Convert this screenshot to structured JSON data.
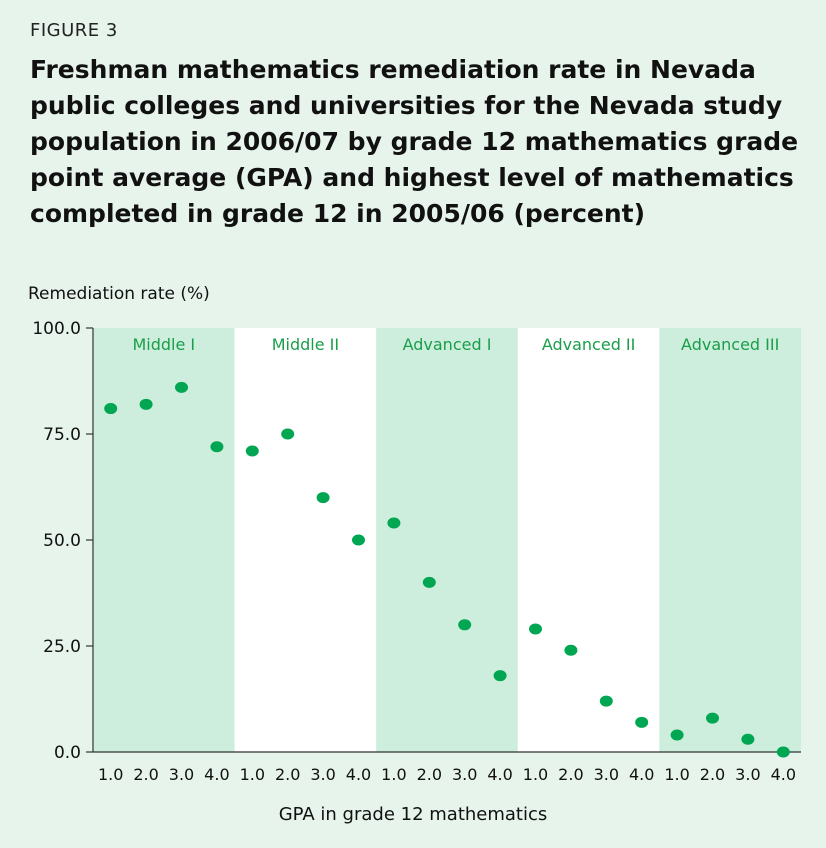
{
  "figure_label": "FIGURE 3",
  "chart_data": {
    "type": "scatter",
    "title": "Freshman mathematics remediation rate in Nevada public colleges and universities for the Nevada study population in 2006/07 by grade 12 mathematics grade point average (GPA) and highest level of mathematics completed in grade 12 in 2005/06 (percent)",
    "ylabel": "Remediation rate (%)",
    "xlabel": "GPA in grade 12 mathematics",
    "ylim": [
      0,
      100
    ],
    "yticks": [
      "0.0",
      "25.0",
      "50.0",
      "75.0",
      "100.0"
    ],
    "ytick_values": [
      0,
      25,
      50,
      75,
      100
    ],
    "marker_color": "#00a651",
    "band_color": "#cdeedc",
    "band_label_color": "#1a9e4a",
    "groups": [
      {
        "name": "Middle I",
        "shaded": true,
        "x": [
          "1.0",
          "2.0",
          "3.0",
          "4.0"
        ],
        "values": [
          81,
          82,
          86,
          72
        ]
      },
      {
        "name": "Middle II",
        "shaded": false,
        "x": [
          "1.0",
          "2.0",
          "3.0",
          "4.0"
        ],
        "values": [
          71,
          75,
          60,
          50
        ]
      },
      {
        "name": "Advanced I",
        "shaded": true,
        "x": [
          "1.0",
          "2.0",
          "3.0",
          "4.0"
        ],
        "values": [
          54,
          40,
          30,
          18
        ]
      },
      {
        "name": "Advanced II",
        "shaded": false,
        "x": [
          "1.0",
          "2.0",
          "3.0",
          "4.0"
        ],
        "values": [
          29,
          24,
          12,
          7
        ]
      },
      {
        "name": "Advanced III",
        "shaded": true,
        "x": [
          "1.0",
          "2.0",
          "3.0",
          "4.0"
        ],
        "values": [
          4,
          8,
          3,
          0
        ]
      }
    ]
  }
}
